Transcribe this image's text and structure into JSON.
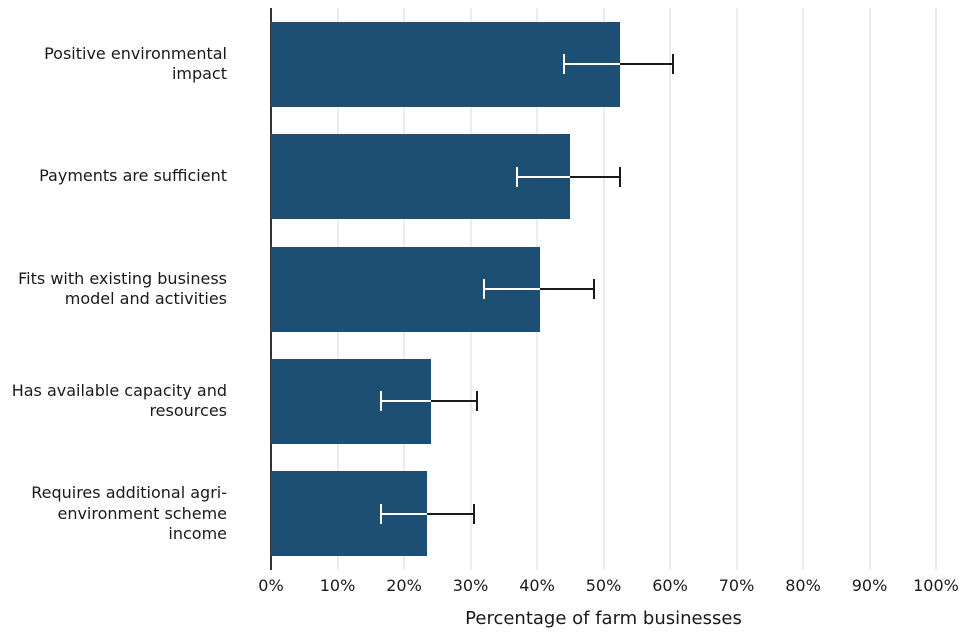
{
  "chart_data": {
    "type": "bar",
    "orientation": "horizontal",
    "title": "",
    "xlabel": "Percentage of farm businesses",
    "ylabel": "",
    "xlim": [
      0,
      100
    ],
    "grid": true,
    "legend": false,
    "x_tick_values": [
      0,
      10,
      20,
      30,
      40,
      50,
      60,
      70,
      80,
      90,
      100
    ],
    "x_ticks": [
      "0%",
      "10%",
      "20%",
      "30%",
      "40%",
      "50%",
      "60%",
      "70%",
      "80%",
      "90%",
      "100%"
    ],
    "categories": [
      "Positive environmental impact",
      "Payments are sufficient",
      "Fits with existing business model and activities",
      "Has available capacity and resources",
      "Requires additional agri-environment scheme income"
    ],
    "values": [
      52.5,
      45,
      40.5,
      24,
      23.5
    ],
    "error_low": [
      44,
      37,
      32,
      16.5,
      16.5
    ],
    "error_high": [
      60.5,
      52.5,
      48.5,
      31,
      30.5
    ],
    "bar_color": "#1d4f74",
    "grid_color": "#d9d9d9",
    "axis_color": "#333333",
    "error_bar_color": "#1a1a1a"
  }
}
